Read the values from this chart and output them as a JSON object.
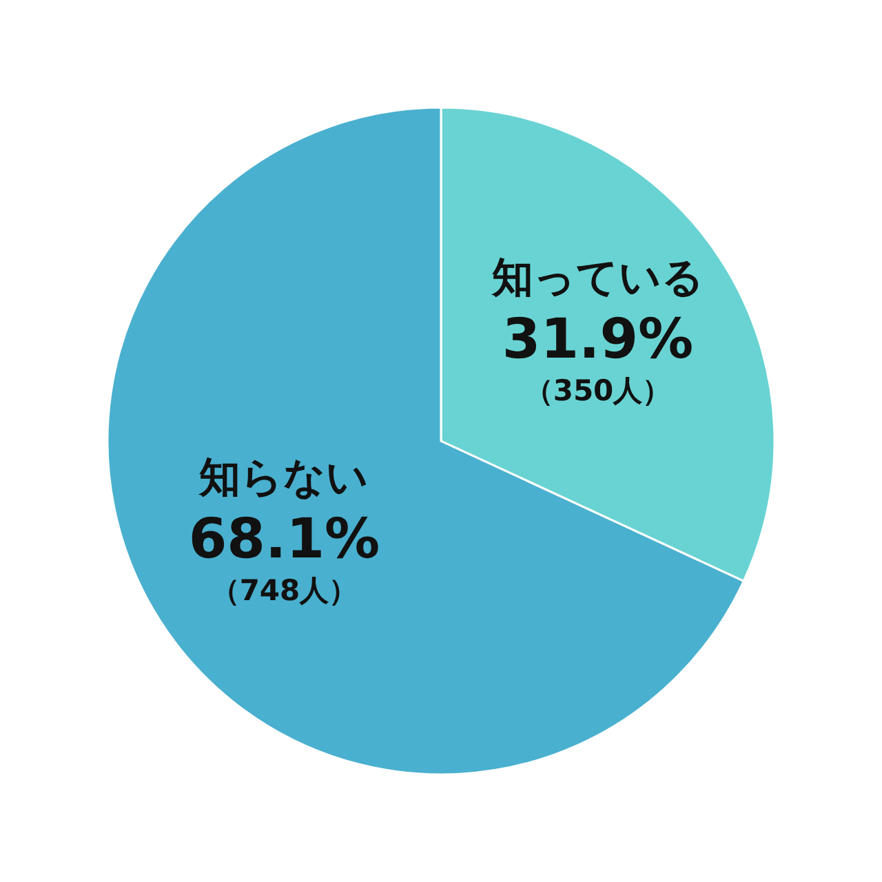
{
  "chart_data": {
    "type": "pie",
    "categories": [
      "知っている",
      "知らない"
    ],
    "values": [
      31.9,
      68.1
    ],
    "colors": [
      "#69d3d3",
      "#4ab0cf"
    ],
    "value_labels": [
      "31.9%",
      "68.1%"
    ],
    "annotations": [
      "（350人）",
      "（748人）"
    ],
    "legend": false
  }
}
